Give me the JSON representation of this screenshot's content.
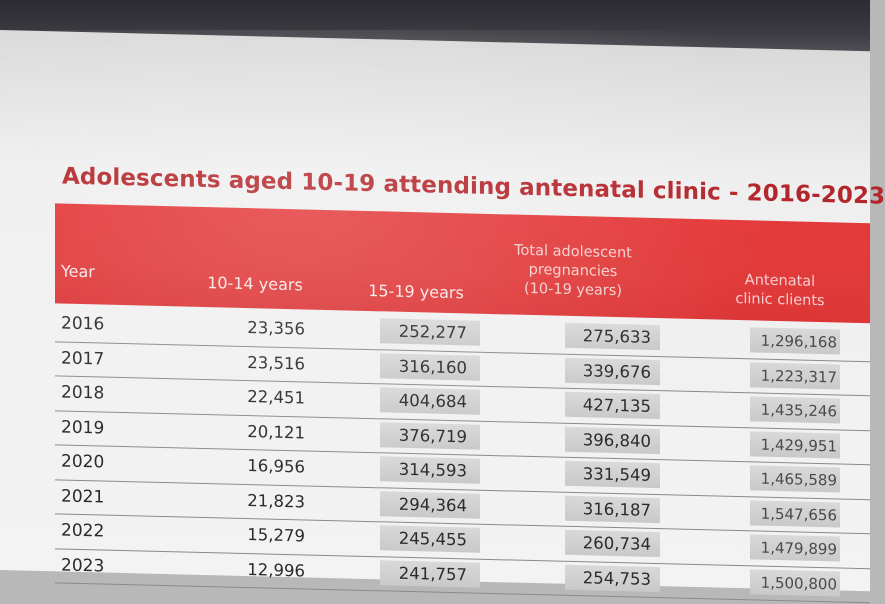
{
  "table": {
    "title": "Adolescents aged 10-19 attending antenatal clinic - 2016-2023",
    "headers": {
      "year": "Year",
      "c1": "10-14 years",
      "c2": "15-19 years",
      "c3_line1": "Total adolescent",
      "c3_line2": "pregnancies",
      "c3_line3": "(10-19 years)",
      "c4_line1": "Antenatal",
      "c4_line2": "clinic clients"
    },
    "rows": [
      {
        "year": "2016",
        "c1": "23,356",
        "c2": "252,277",
        "c3": "275,633",
        "c4": "1,296,168"
      },
      {
        "year": "2017",
        "c1": "23,516",
        "c2": "316,160",
        "c3": "339,676",
        "c4": "1,223,317"
      },
      {
        "year": "2018",
        "c1": "22,451",
        "c2": "404,684",
        "c3": "427,135",
        "c4": "1,435,246"
      },
      {
        "year": "2019",
        "c1": "20,121",
        "c2": "376,719",
        "c3": "396,840",
        "c4": "1,429,951"
      },
      {
        "year": "2020",
        "c1": "16,956",
        "c2": "314,593",
        "c3": "331,549",
        "c4": "1,465,589"
      },
      {
        "year": "2021",
        "c1": "21,823",
        "c2": "294,364",
        "c3": "316,187",
        "c4": "1,547,656"
      },
      {
        "year": "2022",
        "c1": "15,279",
        "c2": "245,455",
        "c3": "260,734",
        "c4": "1,479,899"
      },
      {
        "year": "2023",
        "c1": "12,996",
        "c2": "241,757",
        "c3": "254,753",
        "c4": "1,500,800"
      }
    ]
  },
  "colors": {
    "header_red": "#e13a3a",
    "title_red": "#b3262b"
  }
}
